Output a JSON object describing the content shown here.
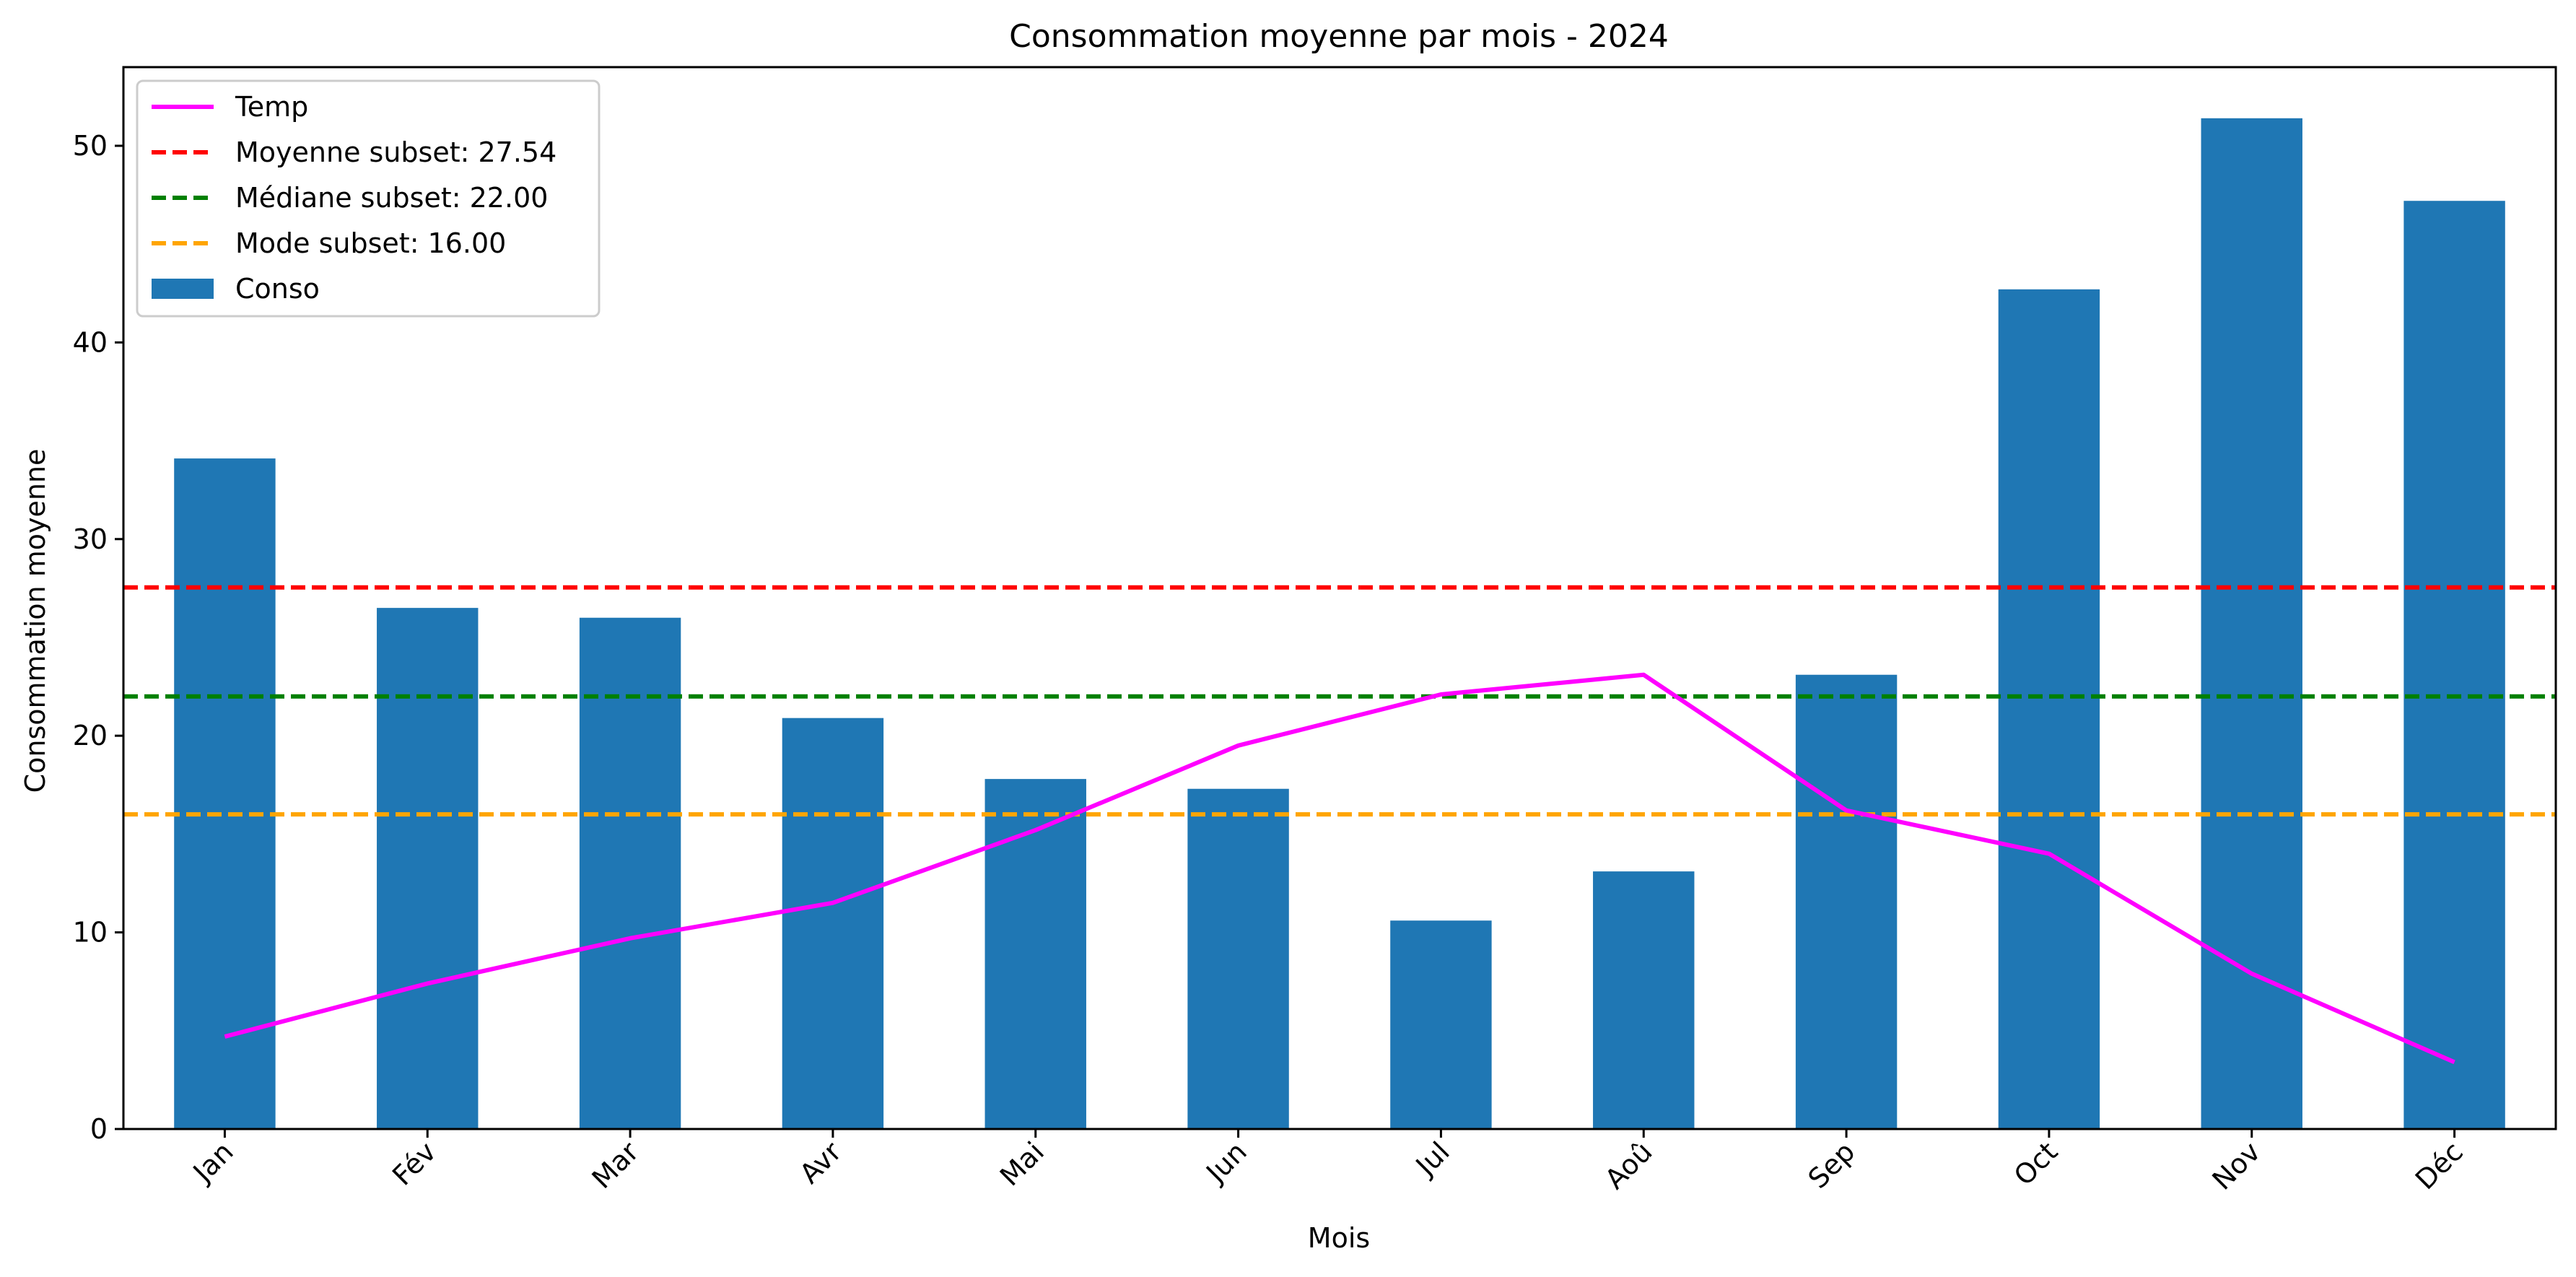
{
  "chart_data": {
    "type": "bar",
    "title": "Consommation moyenne par mois - 2024",
    "xlabel": "Mois",
    "ylabel": "Consommation moyenne",
    "categories": [
      "Jan",
      "Fév",
      "Mar",
      "Avr",
      "Mai",
      "Jun",
      "Jul",
      "Aoû",
      "Sep",
      "Oct",
      "Nov",
      "Déc"
    ],
    "ylim": [
      0,
      54
    ],
    "yticks": [
      0,
      10,
      20,
      30,
      40,
      50
    ],
    "grid": false,
    "legend_position": "top-left",
    "series": [
      {
        "name": "Conso",
        "kind": "bar",
        "color": "#1f77b4",
        "values": [
          34.1,
          26.5,
          26.0,
          20.9,
          17.8,
          17.3,
          10.6,
          13.1,
          23.1,
          42.7,
          51.4,
          47.2
        ]
      },
      {
        "name": "Temp",
        "kind": "line",
        "color": "#ff00ff",
        "values": [
          4.7,
          7.4,
          9.7,
          11.5,
          15.2,
          19.5,
          22.1,
          23.1,
          16.2,
          14.0,
          7.9,
          3.4
        ]
      }
    ],
    "reference_lines": [
      {
        "name": "Moyenne subset: 27.54",
        "value": 27.54,
        "color": "#ff0000"
      },
      {
        "name": "Médiane subset: 22.00",
        "value": 22.0,
        "color": "#008000"
      },
      {
        "name": "Mode subset: 16.00",
        "value": 16.0,
        "color": "#ffa500"
      }
    ],
    "legend": [
      "Temp",
      "Moyenne subset: 27.54",
      "Médiane subset: 22.00",
      "Mode subset: 16.00",
      "Conso"
    ]
  }
}
